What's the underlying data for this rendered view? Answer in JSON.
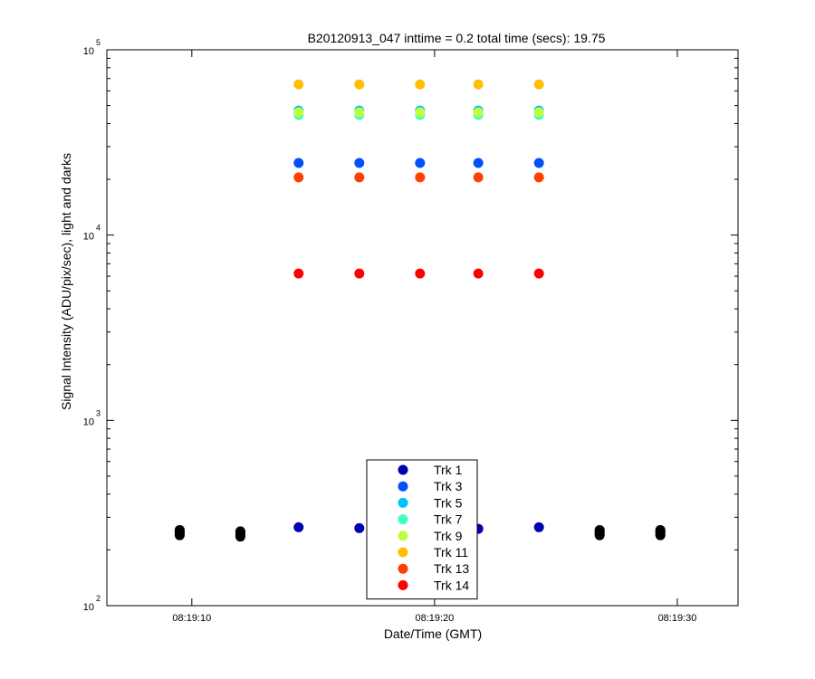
{
  "chart_data": {
    "type": "scatter",
    "title": "B20120913_047 inttime = 0.2 total time (secs): 19.75",
    "xlabel": "Date/Time (GMT)",
    "ylabel": "Signal Intensity (ADU/pix/sec), light and darks",
    "y_scale": "log",
    "ylim": [
      100,
      100000
    ],
    "xlim": [
      "08:19:06.5",
      "08:19:32.5"
    ],
    "x_ticks": [
      "08:19:10",
      "08:19:20",
      "08:19:30"
    ],
    "y_ticks": [
      {
        "base": "10",
        "exp": "2"
      },
      {
        "base": "10",
        "exp": "3"
      },
      {
        "base": "10",
        "exp": "4"
      },
      {
        "base": "10",
        "exp": "5"
      }
    ],
    "grid": false,
    "legend_position": "bottom-center",
    "light_times": [
      "08:19:14.4",
      "08:19:16.9",
      "08:19:19.4",
      "08:19:21.8",
      "08:19:24.3"
    ],
    "dark_times": [
      "08:19:09.5",
      "08:19:12.0",
      "08:19:26.8",
      "08:19:29.3"
    ],
    "series": [
      {
        "name": "Trk 1",
        "color": "#0000b0",
        "values": [
          265,
          262,
          262,
          260,
          265
        ]
      },
      {
        "name": "Trk 3",
        "color": "#0050ff",
        "values": [
          24500,
          24500,
          24500,
          24500,
          24500
        ]
      },
      {
        "name": "Trk 5",
        "color": "#00bfff",
        "values": [
          47000,
          47000,
          47000,
          47000,
          47000
        ]
      },
      {
        "name": "Trk 7",
        "color": "#40ffc0",
        "values": [
          44500,
          44500,
          44500,
          44500,
          44500
        ]
      },
      {
        "name": "Trk 9",
        "color": "#bfff40",
        "values": [
          46000,
          46000,
          46000,
          46000,
          46000
        ]
      },
      {
        "name": "Trk 11",
        "color": "#ffbf00",
        "values": [
          65000,
          65000,
          65000,
          65000,
          65000
        ]
      },
      {
        "name": "Trk 13",
        "color": "#ff4000",
        "values": [
          20500,
          20500,
          20500,
          20500,
          20500
        ]
      },
      {
        "name": "Trk 14",
        "color": "#ff0000",
        "values": [
          6200,
          6200,
          6200,
          6200,
          6200
        ]
      }
    ],
    "darks": {
      "color": "#000000",
      "values": [
        [
          240,
          244,
          248,
          252,
          256
        ],
        [
          236,
          240,
          244,
          248,
          252
        ],
        [
          240,
          244,
          248,
          252,
          256
        ],
        [
          240,
          244,
          248,
          252,
          256
        ]
      ]
    }
  }
}
